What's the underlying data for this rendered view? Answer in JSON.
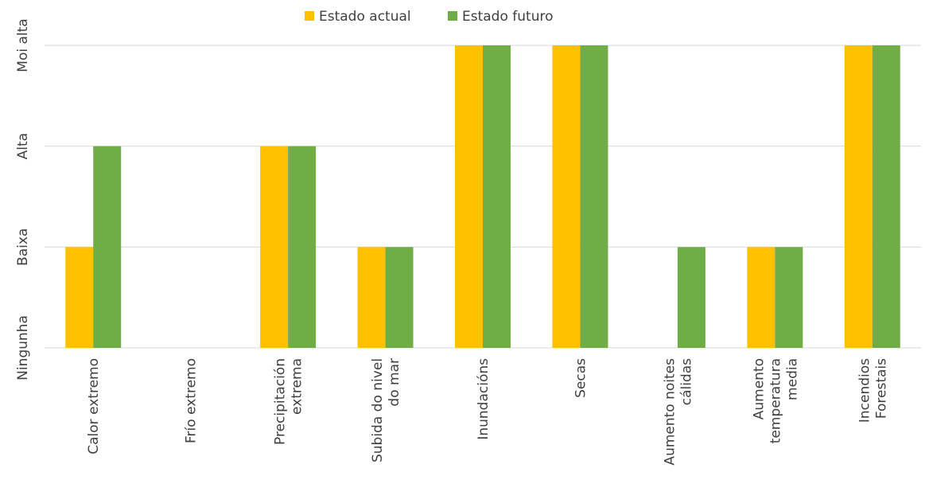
{
  "chart_data": {
    "type": "bar",
    "categories": [
      [
        "Calor extremo"
      ],
      [
        "Frío extremo"
      ],
      [
        "Precipitación",
        "extrema"
      ],
      [
        "Subida do nivel",
        "do mar"
      ],
      [
        "Inundacións"
      ],
      [
        "Secas"
      ],
      [
        "Aumento noites",
        "cálidas"
      ],
      [
        "Aumento",
        "temperatura",
        "media"
      ],
      [
        "Incendios",
        "Forestais"
      ]
    ],
    "y_levels": [
      "Ningunha",
      "Baixa",
      "Alta",
      "Moi alta"
    ],
    "ylim": [
      0,
      3
    ],
    "grid": true,
    "legend_position": "top-center",
    "series": [
      {
        "name": "Estado actual",
        "color": "#FFC000",
        "values": [
          1,
          0,
          2,
          1,
          3,
          3,
          0,
          1,
          3
        ]
      },
      {
        "name": "Estado futuro",
        "color": "#70AD47",
        "values": [
          2,
          0,
          2,
          1,
          3,
          3,
          1,
          1,
          3
        ]
      }
    ],
    "gridline_color": "#D9D9D9",
    "text_color": "#404040"
  }
}
